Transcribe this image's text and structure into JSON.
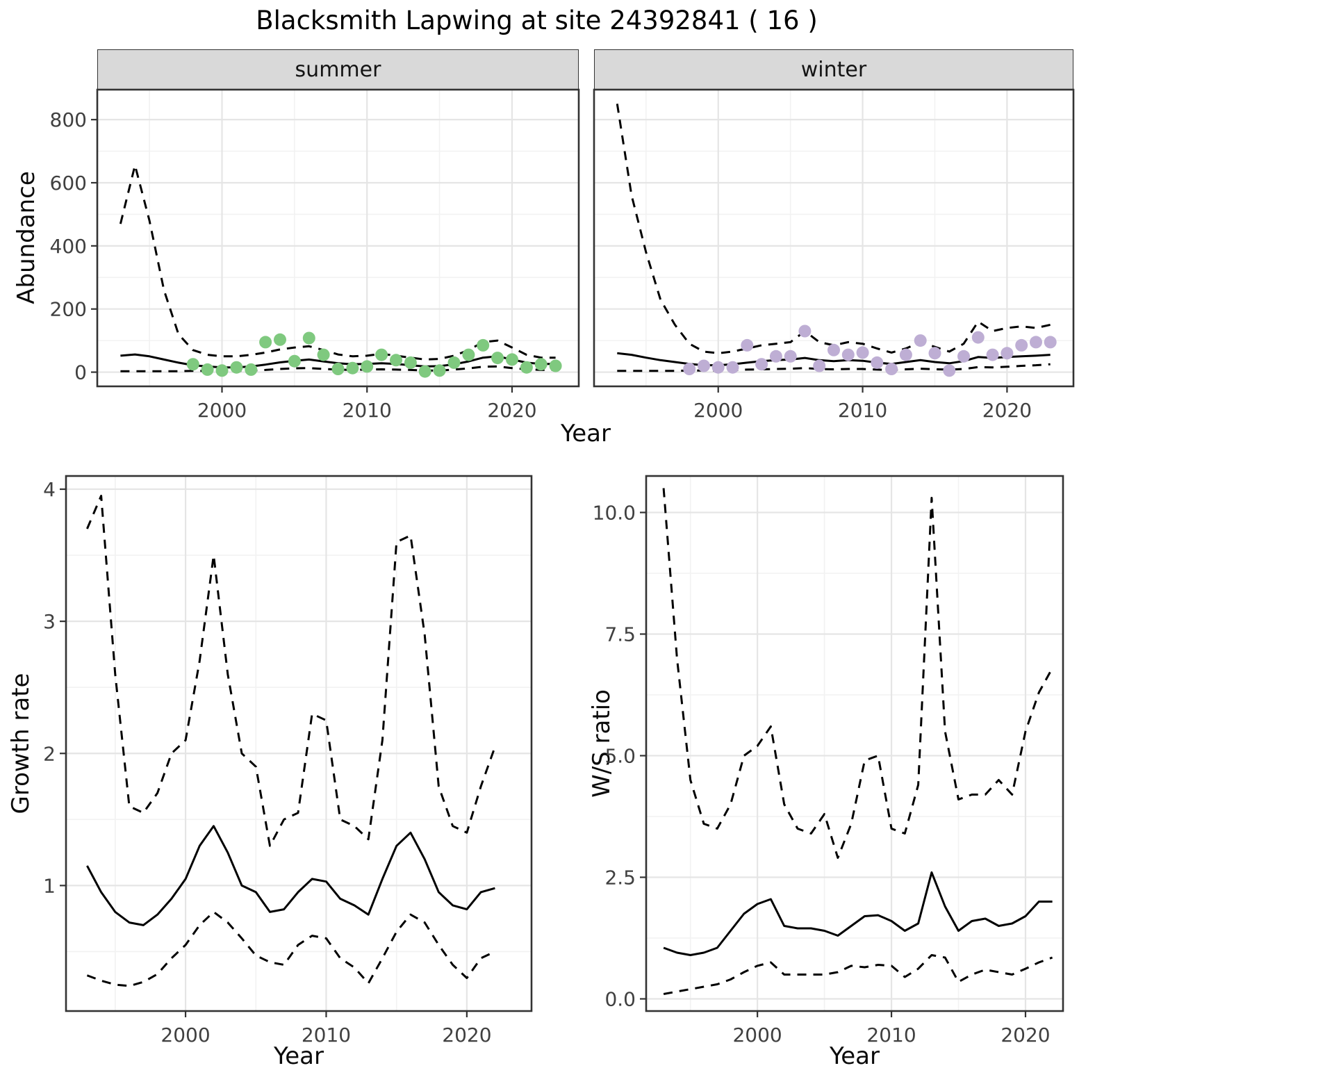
{
  "title": "Blacksmith Lapwing at site 24392841 ( 16 )",
  "colors": {
    "summer_points": "#7FC97F",
    "winter_points": "#BEAED4",
    "line": "#000000",
    "grid_major": "#E5E5E5",
    "grid_minor": "#F2F2F2",
    "strip_bg": "#D9D9D9",
    "panel_border": "#333333",
    "axis_text": "#404040"
  },
  "chart_data": [
    {
      "id": "abundance-summer",
      "type": "line",
      "facet_label": "summer",
      "xlabel": "Year",
      "ylabel": "Abundance",
      "xlim": [
        1991.4,
        2024.6
      ],
      "ylim": [
        -45,
        895
      ],
      "xticks": [
        2000,
        2010,
        2020
      ],
      "xtick_labels": [
        "2000",
        "2010",
        "2020"
      ],
      "yticks": [
        0,
        200,
        400,
        600,
        800
      ],
      "ytick_labels": [
        "0",
        "200",
        "400",
        "600",
        "800"
      ],
      "x": [
        1993,
        1994,
        1995,
        1996,
        1997,
        1998,
        1999,
        2000,
        2001,
        2002,
        2003,
        2004,
        2005,
        2006,
        2007,
        2008,
        2009,
        2010,
        2011,
        2012,
        2013,
        2014,
        2015,
        2016,
        2017,
        2018,
        2019,
        2020,
        2021,
        2022,
        2023
      ],
      "series": [
        {
          "name": "upper_95ci",
          "style": "dashed",
          "values": [
            470,
            655,
            480,
            260,
            120,
            70,
            55,
            50,
            50,
            55,
            62,
            72,
            78,
            82,
            70,
            56,
            50,
            52,
            58,
            52,
            46,
            40,
            42,
            52,
            70,
            95,
            100,
            78,
            55,
            46,
            46
          ]
        },
        {
          "name": "median_fit",
          "style": "solid",
          "values": [
            52,
            56,
            50,
            40,
            30,
            22,
            18,
            15,
            15,
            18,
            24,
            31,
            36,
            40,
            34,
            28,
            25,
            26,
            28,
            26,
            22,
            18,
            19,
            25,
            34,
            46,
            50,
            40,
            30,
            26,
            26
          ]
        },
        {
          "name": "lower_95ci",
          "style": "dashed",
          "values": [
            3,
            3,
            3,
            3,
            3,
            4,
            4,
            4,
            4,
            5,
            7,
            10,
            12,
            13,
            10,
            8,
            7,
            8,
            9,
            8,
            7,
            5,
            5,
            8,
            12,
            17,
            18,
            13,
            9,
            7,
            7
          ]
        }
      ],
      "points": {
        "name": "observed_counts",
        "color_key": "summer_points",
        "x": [
          1998,
          1999,
          2000,
          2001,
          2002,
          2003,
          2004,
          2005,
          2006,
          2007,
          2008,
          2009,
          2010,
          2011,
          2012,
          2013,
          2014,
          2015,
          2016,
          2017,
          2018,
          2019,
          2020,
          2021,
          2022,
          2023
        ],
        "y": [
          25,
          8,
          5,
          15,
          8,
          95,
          103,
          35,
          108,
          55,
          10,
          13,
          18,
          55,
          38,
          30,
          2,
          5,
          30,
          55,
          85,
          45,
          40,
          15,
          25,
          20
        ]
      }
    },
    {
      "id": "abundance-winter",
      "type": "line",
      "facet_label": "winter",
      "xlabel": "Year",
      "ylabel": "Abundance",
      "xlim": [
        1991.4,
        2024.6
      ],
      "ylim": [
        -45,
        895
      ],
      "xticks": [
        2000,
        2010,
        2020
      ],
      "xtick_labels": [
        "2000",
        "2010",
        "2020"
      ],
      "yticks": [
        0,
        200,
        400,
        600,
        800
      ],
      "ytick_labels": [
        "0",
        "200",
        "400",
        "600",
        "800"
      ],
      "x": [
        1993,
        1994,
        1995,
        1996,
        1997,
        1998,
        1999,
        2000,
        2001,
        2002,
        2003,
        2004,
        2005,
        2006,
        2007,
        2008,
        2009,
        2010,
        2011,
        2012,
        2013,
        2014,
        2015,
        2016,
        2017,
        2018,
        2019,
        2020,
        2021,
        2022,
        2023
      ],
      "series": [
        {
          "name": "upper_95ci",
          "style": "dashed",
          "values": [
            850,
            560,
            380,
            230,
            150,
            90,
            65,
            60,
            65,
            75,
            85,
            90,
            95,
            130,
            95,
            85,
            95,
            90,
            75,
            62,
            75,
            95,
            80,
            65,
            90,
            160,
            130,
            140,
            145,
            140,
            150
          ]
        },
        {
          "name": "median_fit",
          "style": "solid",
          "values": [
            60,
            55,
            46,
            38,
            32,
            26,
            22,
            22,
            25,
            30,
            35,
            38,
            40,
            45,
            38,
            35,
            38,
            36,
            30,
            26,
            32,
            38,
            32,
            28,
            35,
            48,
            45,
            48,
            50,
            52,
            55
          ]
        },
        {
          "name": "lower_95ci",
          "style": "dashed",
          "values": [
            4,
            4,
            4,
            4,
            4,
            5,
            5,
            5,
            6,
            8,
            9,
            10,
            11,
            13,
            10,
            9,
            10,
            10,
            8,
            7,
            9,
            11,
            9,
            8,
            10,
            16,
            15,
            17,
            20,
            22,
            25
          ]
        }
      ],
      "points": {
        "name": "observed_counts",
        "color_key": "winter_points",
        "x": [
          1998,
          1999,
          2000,
          2001,
          2002,
          2003,
          2004,
          2005,
          2006,
          2007,
          2008,
          2009,
          2010,
          2011,
          2012,
          2013,
          2014,
          2015,
          2016,
          2017,
          2018,
          2019,
          2020,
          2021,
          2022,
          2023
        ],
        "y": [
          10,
          20,
          15,
          15,
          85,
          25,
          50,
          50,
          130,
          20,
          70,
          55,
          62,
          30,
          10,
          55,
          100,
          60,
          5,
          50,
          110,
          55,
          60,
          85,
          95,
          95
        ]
      }
    },
    {
      "id": "growth-rate",
      "type": "line",
      "xlabel": "Year",
      "ylabel": "Growth rate",
      "xlim": [
        1991.5,
        2024.6
      ],
      "ylim": [
        0.05,
        4.1
      ],
      "xticks": [
        2000,
        2010,
        2020
      ],
      "xtick_labels": [
        "2000",
        "2010",
        "2020"
      ],
      "yticks": [
        1,
        2,
        3,
        4
      ],
      "ytick_labels": [
        "1",
        "2",
        "3",
        "4"
      ],
      "x": [
        1993,
        1994,
        1995,
        1996,
        1997,
        1998,
        1999,
        2000,
        2001,
        2002,
        2003,
        2004,
        2005,
        2006,
        2007,
        2008,
        2009,
        2010,
        2011,
        2012,
        2013,
        2014,
        2015,
        2016,
        2017,
        2018,
        2019,
        2020,
        2021,
        2022
      ],
      "series": [
        {
          "name": "upper_95ci",
          "style": "dashed",
          "values": [
            3.7,
            3.95,
            2.6,
            1.6,
            1.55,
            1.7,
            2.0,
            2.1,
            2.7,
            3.5,
            2.6,
            2.0,
            1.9,
            1.3,
            1.5,
            1.55,
            2.3,
            2.25,
            1.5,
            1.45,
            1.35,
            2.1,
            3.6,
            3.65,
            2.9,
            1.75,
            1.45,
            1.4,
            1.75,
            2.05
          ]
        },
        {
          "name": "median_fit",
          "style": "solid",
          "values": [
            1.15,
            0.95,
            0.8,
            0.72,
            0.7,
            0.78,
            0.9,
            1.05,
            1.3,
            1.45,
            1.25,
            1.0,
            0.95,
            0.8,
            0.82,
            0.95,
            1.05,
            1.03,
            0.9,
            0.85,
            0.78,
            1.05,
            1.3,
            1.4,
            1.2,
            0.95,
            0.85,
            0.82,
            0.95,
            0.98
          ]
        },
        {
          "name": "lower_95ci",
          "style": "dashed",
          "values": [
            0.32,
            0.28,
            0.25,
            0.24,
            0.27,
            0.33,
            0.45,
            0.55,
            0.7,
            0.8,
            0.72,
            0.6,
            0.47,
            0.42,
            0.4,
            0.55,
            0.62,
            0.6,
            0.45,
            0.38,
            0.26,
            0.45,
            0.65,
            0.78,
            0.72,
            0.55,
            0.4,
            0.3,
            0.45,
            0.5
          ]
        }
      ]
    },
    {
      "id": "ws-ratio",
      "type": "line",
      "xlabel": "Year",
      "ylabel": "W/S ratio",
      "xlim": [
        1991.7,
        2022.8
      ],
      "ylim": [
        -0.25,
        10.75
      ],
      "xticks": [
        2000,
        2010,
        2020
      ],
      "xtick_labels": [
        "2000",
        "2010",
        "2020"
      ],
      "yticks": [
        0,
        2.5,
        5,
        7.5,
        10
      ],
      "ytick_labels": [
        "0.0",
        "2.5",
        "5.0",
        "7.5",
        "10.0"
      ],
      "x": [
        1993,
        1994,
        1995,
        1996,
        1997,
        1998,
        1999,
        2000,
        2001,
        2002,
        2003,
        2004,
        2005,
        2006,
        2007,
        2008,
        2009,
        2010,
        2011,
        2012,
        2013,
        2014,
        2015,
        2016,
        2017,
        2018,
        2019,
        2020,
        2021,
        2022
      ],
      "series": [
        {
          "name": "upper_95ci",
          "style": "dashed",
          "values": [
            10.5,
            7.0,
            4.5,
            3.6,
            3.5,
            4.0,
            5.0,
            5.2,
            5.6,
            4.0,
            3.5,
            3.4,
            3.8,
            2.9,
            3.6,
            4.9,
            5.0,
            3.5,
            3.4,
            4.4,
            10.3,
            5.5,
            4.1,
            4.2,
            4.2,
            4.5,
            4.2,
            5.5,
            6.3,
            6.8
          ]
        },
        {
          "name": "median_fit",
          "style": "solid",
          "values": [
            1.05,
            0.95,
            0.9,
            0.95,
            1.05,
            1.4,
            1.75,
            1.95,
            2.05,
            1.5,
            1.45,
            1.45,
            1.4,
            1.3,
            1.5,
            1.7,
            1.72,
            1.6,
            1.4,
            1.55,
            2.6,
            1.9,
            1.4,
            1.6,
            1.65,
            1.5,
            1.55,
            1.7,
            2.0,
            2.0
          ]
        },
        {
          "name": "lower_95ci",
          "style": "dashed",
          "values": [
            0.1,
            0.15,
            0.2,
            0.25,
            0.3,
            0.4,
            0.55,
            0.68,
            0.75,
            0.5,
            0.5,
            0.5,
            0.5,
            0.55,
            0.68,
            0.65,
            0.7,
            0.68,
            0.45,
            0.62,
            0.9,
            0.85,
            0.35,
            0.5,
            0.6,
            0.55,
            0.5,
            0.62,
            0.75,
            0.85
          ]
        }
      ]
    }
  ]
}
